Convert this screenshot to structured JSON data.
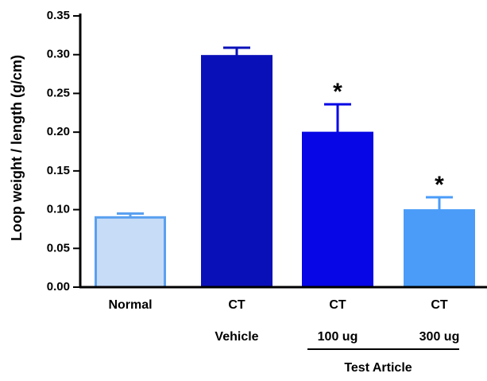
{
  "chart_data": {
    "type": "bar",
    "title": "",
    "xlabel": "",
    "ylabel": "Loop weight / length (g/cm)",
    "ylim": [
      0,
      0.35
    ],
    "yticks": [
      "0.00",
      "0.05",
      "0.10",
      "0.15",
      "0.20",
      "0.25",
      "0.30",
      "0.35"
    ],
    "grid": false,
    "categories": [
      "Normal",
      "CT",
      "CT",
      "CT"
    ],
    "values": [
      0.09,
      0.298,
      0.199,
      0.099
    ],
    "errors": [
      0.005,
      0.011,
      0.037,
      0.017
    ],
    "significance": [
      "",
      "",
      "*",
      "*"
    ],
    "colors": [
      "#c6dcf7",
      "#0a10b8",
      "#0606e6",
      "#4a9cf8"
    ],
    "edge_colors": [
      "#5aa0f0",
      "#0a10b8",
      "#0606e6",
      "#4a9cf8"
    ],
    "sub_labels": [
      "",
      "Vehicle",
      "100 ug",
      "300 ug"
    ],
    "group_label": "Test Article"
  }
}
